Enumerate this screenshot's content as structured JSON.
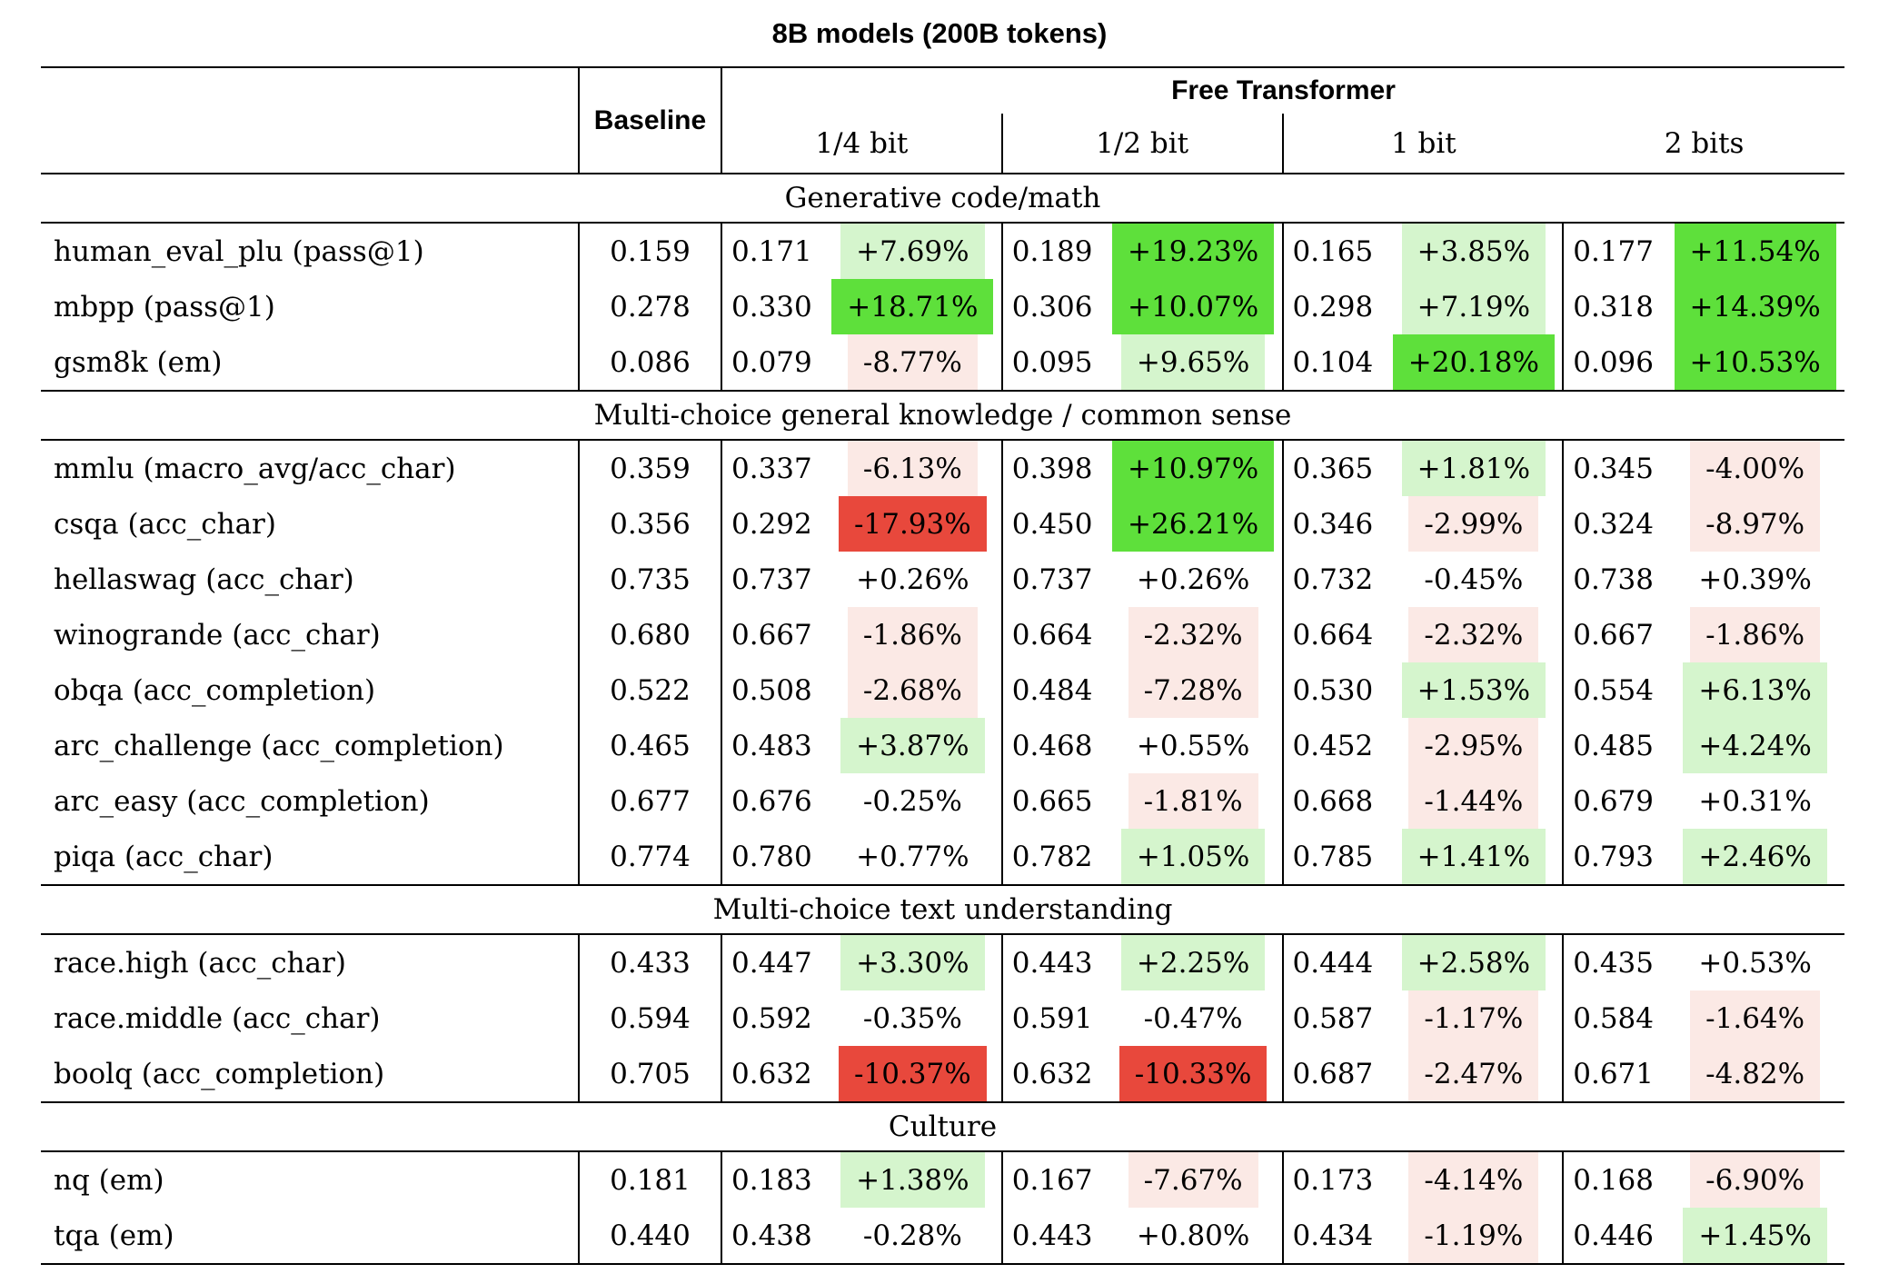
{
  "title": "8B models (200B tokens)",
  "header": {
    "baseline_label": "Baseline",
    "group_label": "Free Transformer",
    "variants": [
      "1/4 bit",
      "1/2 bit",
      "1 bit",
      "2 bits"
    ]
  },
  "colors": {
    "strong_green": "#5ee03b",
    "light_green": "#d5f5cd",
    "strong_red": "#e8483c",
    "light_red": "#fbe9e5"
  },
  "sections": [
    {
      "label": "Generative code/math",
      "rows": [
        {
          "name": "human_eval_plu (pass@1)",
          "baseline": "0.159",
          "cells": [
            {
              "v": "0.171",
              "p": "+7.69%"
            },
            {
              "v": "0.189",
              "p": "+19.23%"
            },
            {
              "v": "0.165",
              "p": "+3.85%"
            },
            {
              "v": "0.177",
              "p": "+11.54%"
            }
          ]
        },
        {
          "name": "mbpp (pass@1)",
          "baseline": "0.278",
          "cells": [
            {
              "v": "0.330",
              "p": "+18.71%"
            },
            {
              "v": "0.306",
              "p": "+10.07%"
            },
            {
              "v": "0.298",
              "p": "+7.19%"
            },
            {
              "v": "0.318",
              "p": "+14.39%"
            }
          ]
        },
        {
          "name": "gsm8k (em)",
          "baseline": "0.086",
          "cells": [
            {
              "v": "0.079",
              "p": "-8.77%"
            },
            {
              "v": "0.095",
              "p": "+9.65%"
            },
            {
              "v": "0.104",
              "p": "+20.18%"
            },
            {
              "v": "0.096",
              "p": "+10.53%"
            }
          ]
        }
      ]
    },
    {
      "label": "Multi-choice general knowledge / common sense",
      "rows": [
        {
          "name": "mmlu (macro_avg/acc_char)",
          "baseline": "0.359",
          "cells": [
            {
              "v": "0.337",
              "p": "-6.13%"
            },
            {
              "v": "0.398",
              "p": "+10.97%"
            },
            {
              "v": "0.365",
              "p": "+1.81%"
            },
            {
              "v": "0.345",
              "p": "-4.00%"
            }
          ]
        },
        {
          "name": "csqa (acc_char)",
          "baseline": "0.356",
          "cells": [
            {
              "v": "0.292",
              "p": "-17.93%"
            },
            {
              "v": "0.450",
              "p": "+26.21%"
            },
            {
              "v": "0.346",
              "p": "-2.99%"
            },
            {
              "v": "0.324",
              "p": "-8.97%"
            }
          ]
        },
        {
          "name": "hellaswag (acc_char)",
          "baseline": "0.735",
          "cells": [
            {
              "v": "0.737",
              "p": "+0.26%"
            },
            {
              "v": "0.737",
              "p": "+0.26%"
            },
            {
              "v": "0.732",
              "p": "-0.45%"
            },
            {
              "v": "0.738",
              "p": "+0.39%"
            }
          ]
        },
        {
          "name": "winogrande (acc_char)",
          "baseline": "0.680",
          "cells": [
            {
              "v": "0.667",
              "p": "-1.86%"
            },
            {
              "v": "0.664",
              "p": "-2.32%"
            },
            {
              "v": "0.664",
              "p": "-2.32%"
            },
            {
              "v": "0.667",
              "p": "-1.86%"
            }
          ]
        },
        {
          "name": "obqa (acc_completion)",
          "baseline": "0.522",
          "cells": [
            {
              "v": "0.508",
              "p": "-2.68%"
            },
            {
              "v": "0.484",
              "p": "-7.28%"
            },
            {
              "v": "0.530",
              "p": "+1.53%"
            },
            {
              "v": "0.554",
              "p": "+6.13%"
            }
          ]
        },
        {
          "name": "arc_challenge (acc_completion)",
          "baseline": "0.465",
          "cells": [
            {
              "v": "0.483",
              "p": "+3.87%"
            },
            {
              "v": "0.468",
              "p": "+0.55%"
            },
            {
              "v": "0.452",
              "p": "-2.95%"
            },
            {
              "v": "0.485",
              "p": "+4.24%"
            }
          ]
        },
        {
          "name": "arc_easy (acc_completion)",
          "baseline": "0.677",
          "cells": [
            {
              "v": "0.676",
              "p": "-0.25%"
            },
            {
              "v": "0.665",
              "p": "-1.81%"
            },
            {
              "v": "0.668",
              "p": "-1.44%"
            },
            {
              "v": "0.679",
              "p": "+0.31%"
            }
          ]
        },
        {
          "name": "piqa (acc_char)",
          "baseline": "0.774",
          "cells": [
            {
              "v": "0.780",
              "p": "+0.77%"
            },
            {
              "v": "0.782",
              "p": "+1.05%"
            },
            {
              "v": "0.785",
              "p": "+1.41%"
            },
            {
              "v": "0.793",
              "p": "+2.46%"
            }
          ]
        }
      ]
    },
    {
      "label": "Multi-choice text understanding",
      "rows": [
        {
          "name": "race.high (acc_char)",
          "baseline": "0.433",
          "cells": [
            {
              "v": "0.447",
              "p": "+3.30%"
            },
            {
              "v": "0.443",
              "p": "+2.25%"
            },
            {
              "v": "0.444",
              "p": "+2.58%"
            },
            {
              "v": "0.435",
              "p": "+0.53%"
            }
          ]
        },
        {
          "name": "race.middle (acc_char)",
          "baseline": "0.594",
          "cells": [
            {
              "v": "0.592",
              "p": "-0.35%"
            },
            {
              "v": "0.591",
              "p": "-0.47%"
            },
            {
              "v": "0.587",
              "p": "-1.17%"
            },
            {
              "v": "0.584",
              "p": "-1.64%"
            }
          ]
        },
        {
          "name": "boolq (acc_completion)",
          "baseline": "0.705",
          "cells": [
            {
              "v": "0.632",
              "p": "-10.37%"
            },
            {
              "v": "0.632",
              "p": "-10.33%"
            },
            {
              "v": "0.687",
              "p": "-2.47%"
            },
            {
              "v": "0.671",
              "p": "-4.82%"
            }
          ]
        }
      ]
    },
    {
      "label": "Culture",
      "rows": [
        {
          "name": "nq (em)",
          "baseline": "0.181",
          "cells": [
            {
              "v": "0.183",
              "p": "+1.38%"
            },
            {
              "v": "0.167",
              "p": "-7.67%"
            },
            {
              "v": "0.173",
              "p": "-4.14%"
            },
            {
              "v": "0.168",
              "p": "-6.90%"
            }
          ]
        },
        {
          "name": "tqa (em)",
          "baseline": "0.440",
          "cells": [
            {
              "v": "0.438",
              "p": "-0.28%"
            },
            {
              "v": "0.443",
              "p": "+0.80%"
            },
            {
              "v": "0.434",
              "p": "-1.19%"
            },
            {
              "v": "0.446",
              "p": "+1.45%"
            }
          ]
        }
      ]
    }
  ]
}
